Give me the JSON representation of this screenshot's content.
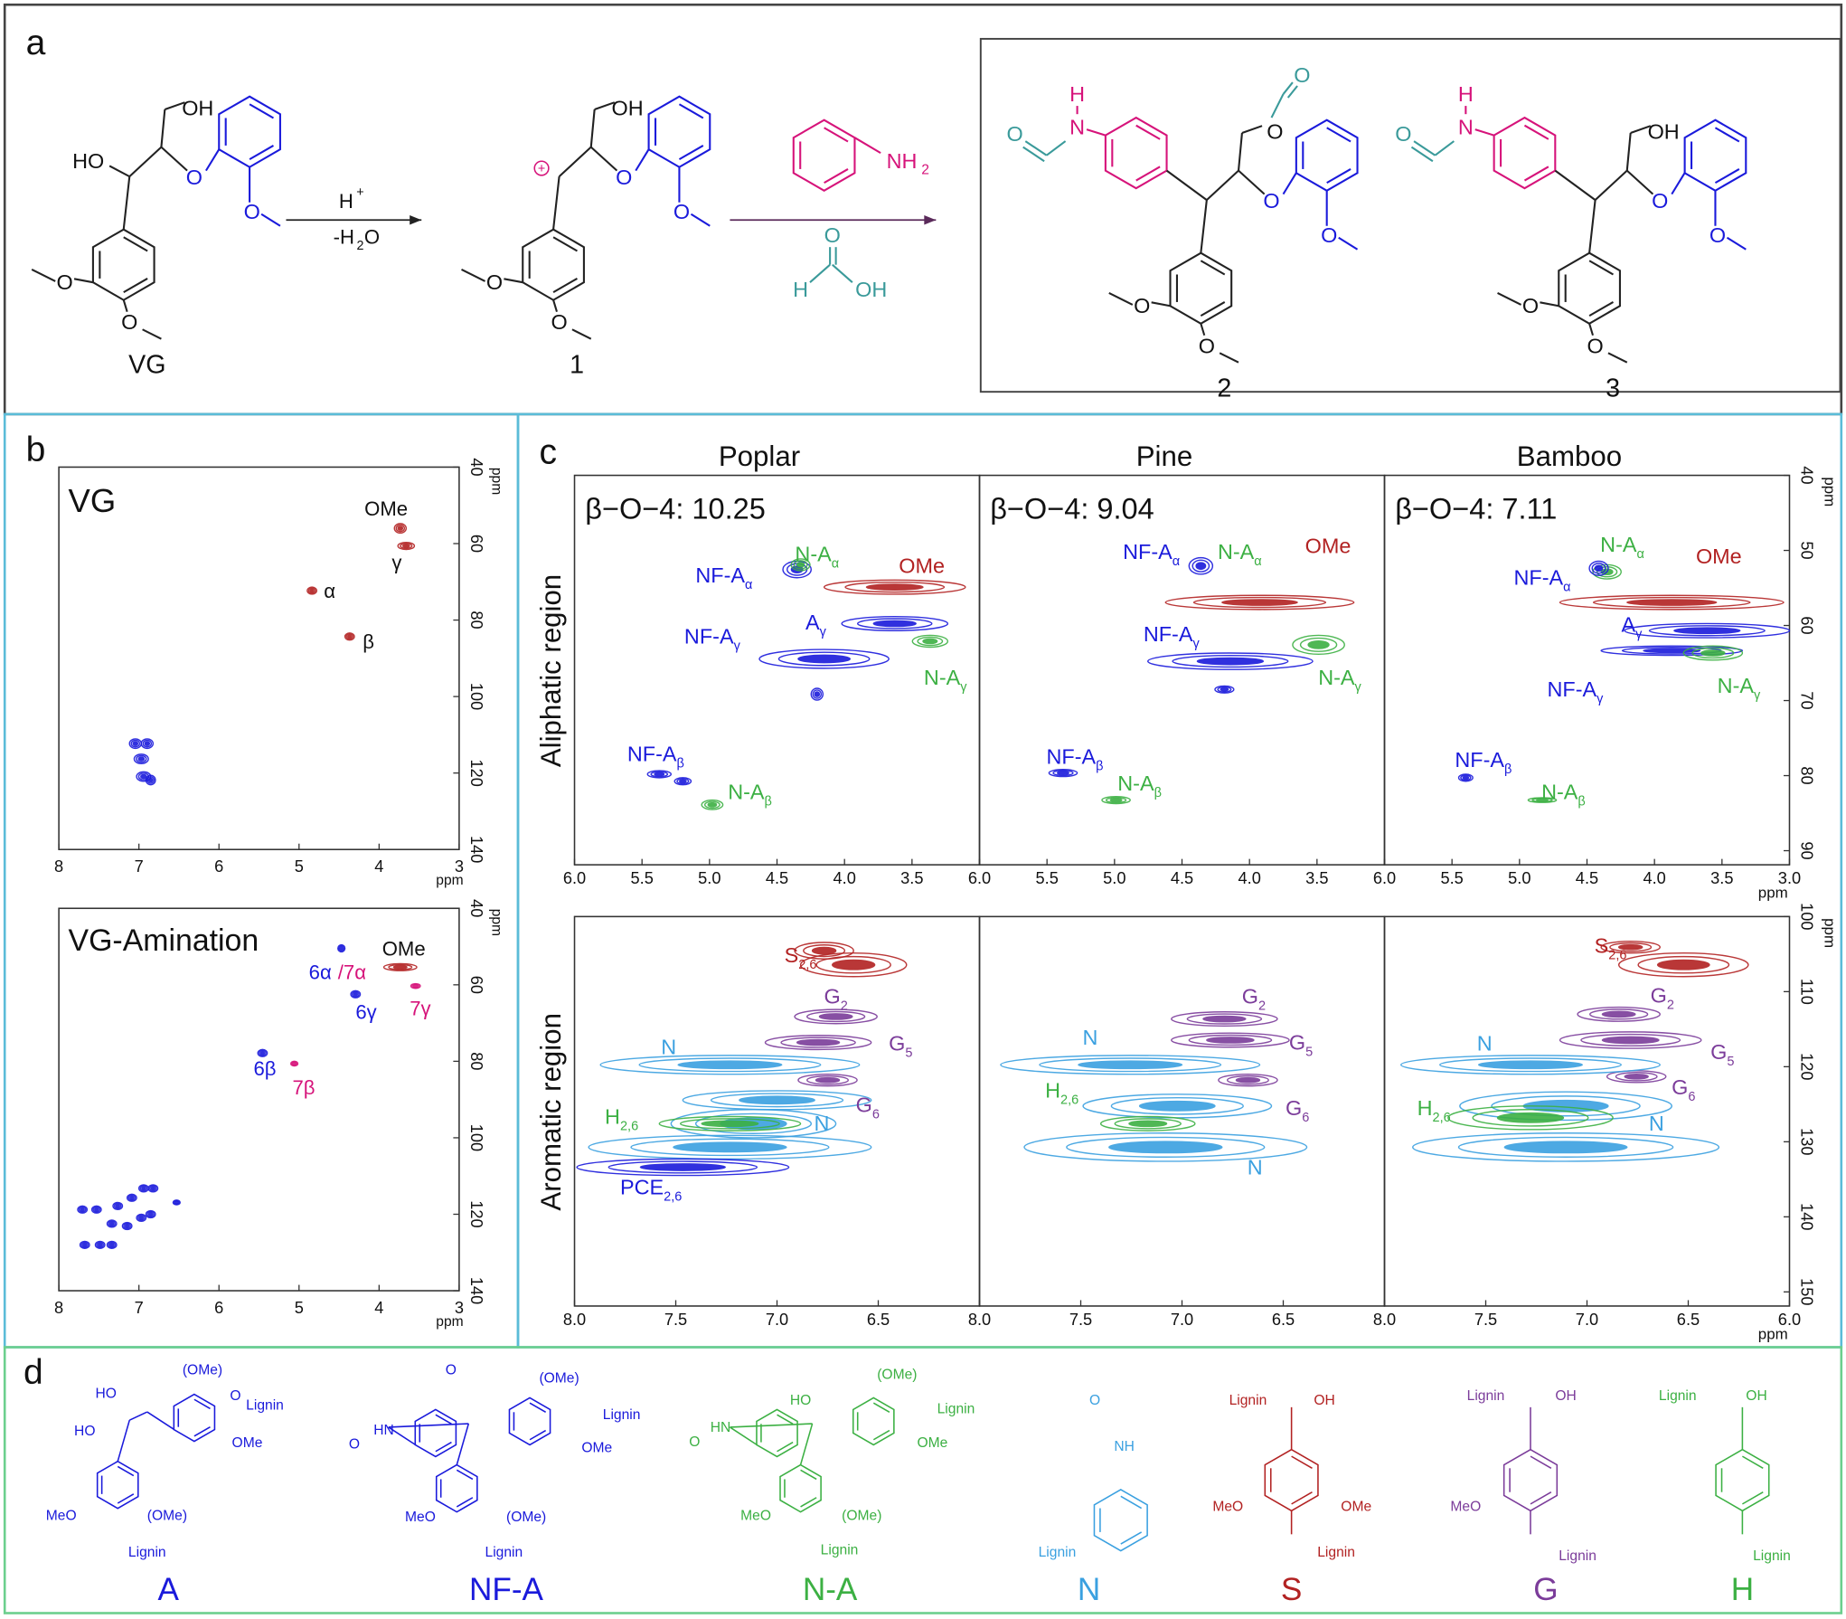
{
  "panel_a": {
    "label": "a",
    "compounds": [
      {
        "name": "VG",
        "atoms": [
          "OH",
          "O",
          "O",
          "O",
          "O"
        ],
        "alpha": "HO"
      },
      {
        "name": "1",
        "atoms": [
          "OH",
          "O",
          "O",
          "O",
          "O"
        ],
        "charge": "+"
      },
      {
        "name": "2",
        "atoms": [
          "O",
          "O",
          "O",
          "O",
          "O"
        ],
        "formate": "O",
        "amide": [
          "H",
          "N",
          "O"
        ]
      },
      {
        "name": "3",
        "atoms": [
          "OH",
          "O",
          "O",
          "O",
          "O"
        ],
        "amide": [
          "H",
          "N",
          "O"
        ]
      }
    ],
    "step1": {
      "acid": "H",
      "acid_charge": "+",
      "loss": "-H",
      "loss_sub": "2",
      "loss_end": "O"
    },
    "step2": {
      "amine": "NH",
      "amine_sub": "2",
      "acid_atoms": [
        "O",
        "H",
        "OH"
      ]
    }
  },
  "panel_b": {
    "label": "b",
    "x_ticks": [
      "8",
      "7",
      "6",
      "5",
      "4",
      "3"
    ],
    "y_ticks": [
      "40",
      "60",
      "80",
      "100",
      "120",
      "140"
    ],
    "unit": "ppm",
    "plots": [
      {
        "title": "VG",
        "peaks": [
          {
            "text": "OMe"
          },
          {
            "text": "γ"
          },
          {
            "text": "α"
          },
          {
            "text": "β"
          }
        ]
      },
      {
        "title": "VG-Amination",
        "peaks": [
          {
            "text": "OMe"
          },
          {
            "text": "6α"
          },
          {
            "text": "/7α"
          },
          {
            "text": "6γ"
          },
          {
            "text": "7γ"
          },
          {
            "text": "6β"
          },
          {
            "text": "7β"
          }
        ]
      }
    ]
  },
  "panel_c": {
    "label": "c",
    "columns": [
      "Poplar",
      "Pine",
      "Bamboo"
    ],
    "rows": [
      "Aliphatic region",
      "Aromatic region"
    ],
    "linkage": [
      "β−O−4: 10.25",
      "β−O−4: 9.04",
      "β−O−4: 7.11"
    ],
    "aliphatic_x_ticks": [
      "6.0",
      "5.5",
      "5.0",
      "4.5",
      "4.0",
      "3.5",
      "3.0"
    ],
    "aliphatic_y_ticks": [
      "40",
      "50",
      "60",
      "70",
      "80",
      "90"
    ],
    "aromatic_x_ticks": [
      "8.0",
      "7.5",
      "7.0",
      "6.5",
      "6.0"
    ],
    "aromatic_y_ticks": [
      "100",
      "110",
      "120",
      "130",
      "140",
      "150"
    ],
    "unit": "ppm",
    "aliphatic_peaks": [
      [
        {
          "text": "NF-A",
          "sub": "α"
        },
        {
          "text": "N-A",
          "sub": "α"
        },
        {
          "text": "OMe"
        },
        {
          "text": "NF-A",
          "sub": "γ"
        },
        {
          "text": "A",
          "sub": "γ"
        },
        {
          "text": "N-A",
          "sub": "γ"
        },
        {
          "text": "NF-A",
          "sub": "β"
        },
        {
          "text": "N-A",
          "sub": "β"
        }
      ],
      [
        {
          "text": "NF-A",
          "sub": "α"
        },
        {
          "text": "N-A",
          "sub": "α"
        },
        {
          "text": "OMe"
        },
        {
          "text": "NF-A",
          "sub": "γ"
        },
        {
          "text": "N-A",
          "sub": "γ"
        },
        {
          "text": "NF-A",
          "sub": "β"
        },
        {
          "text": "N-A",
          "sub": "β"
        }
      ],
      [
        {
          "text": "N-A",
          "sub": "α"
        },
        {
          "text": "OMe"
        },
        {
          "text": "NF-A",
          "sub": "α"
        },
        {
          "text": "A",
          "sub": "γ"
        },
        {
          "text": "NF-A",
          "sub": "γ"
        },
        {
          "text": "N-A",
          "sub": "γ"
        },
        {
          "text": "NF-A",
          "sub": "β"
        },
        {
          "text": "N-A",
          "sub": "β"
        }
      ]
    ],
    "aromatic_peaks": [
      [
        {
          "text": "S",
          "sub": "2,6"
        },
        {
          "text": "G",
          "sub": "2"
        },
        {
          "text": "G",
          "sub": "5"
        },
        {
          "text": "N"
        },
        {
          "text": "G",
          "sub": "6"
        },
        {
          "text": "H",
          "sub": "2,6"
        },
        {
          "text": "N"
        },
        {
          "text": "PCE",
          "sub": "2,6"
        }
      ],
      [
        {
          "text": "G",
          "sub": "2"
        },
        {
          "text": "N"
        },
        {
          "text": "G",
          "sub": "5"
        },
        {
          "text": "H",
          "sub": "2,6"
        },
        {
          "text": "G",
          "sub": "6"
        },
        {
          "text": "N"
        }
      ],
      [
        {
          "text": "S",
          "sub": "2,6"
        },
        {
          "text": "G",
          "sub": "2"
        },
        {
          "text": "N"
        },
        {
          "text": "G",
          "sub": "5"
        },
        {
          "text": "G",
          "sub": "6"
        },
        {
          "text": "H",
          "sub": "2,6"
        },
        {
          "text": "N"
        }
      ]
    ]
  },
  "panel_d": {
    "label": "d",
    "structures": [
      {
        "name": "A",
        "labels": [
          "HO",
          "HO",
          "(OMe)",
          "O",
          "Lignin",
          "OMe",
          "MeO",
          "(OMe)",
          "Lignin"
        ]
      },
      {
        "name": "NF-A",
        "labels": [
          "O",
          "(OMe)",
          "Lignin",
          "OMe",
          "HN",
          "O",
          "MeO",
          "(OMe)",
          "Lignin"
        ]
      },
      {
        "name": "N-A",
        "labels": [
          "(OMe)",
          "HO",
          "Lignin",
          "OMe",
          "HN",
          "O",
          "MeO",
          "(OMe)",
          "Lignin"
        ]
      },
      {
        "name": "N",
        "labels": [
          "O",
          "NH",
          "Lignin"
        ]
      },
      {
        "name": "S",
        "labels": [
          "Lignin",
          "OH",
          "MeO",
          "OMe",
          "Lignin"
        ]
      },
      {
        "name": "G",
        "labels": [
          "Lignin",
          "OH",
          "MeO",
          "Lignin"
        ]
      },
      {
        "name": "H",
        "labels": [
          "Lignin",
          "OH",
          "Lignin"
        ]
      }
    ]
  }
}
